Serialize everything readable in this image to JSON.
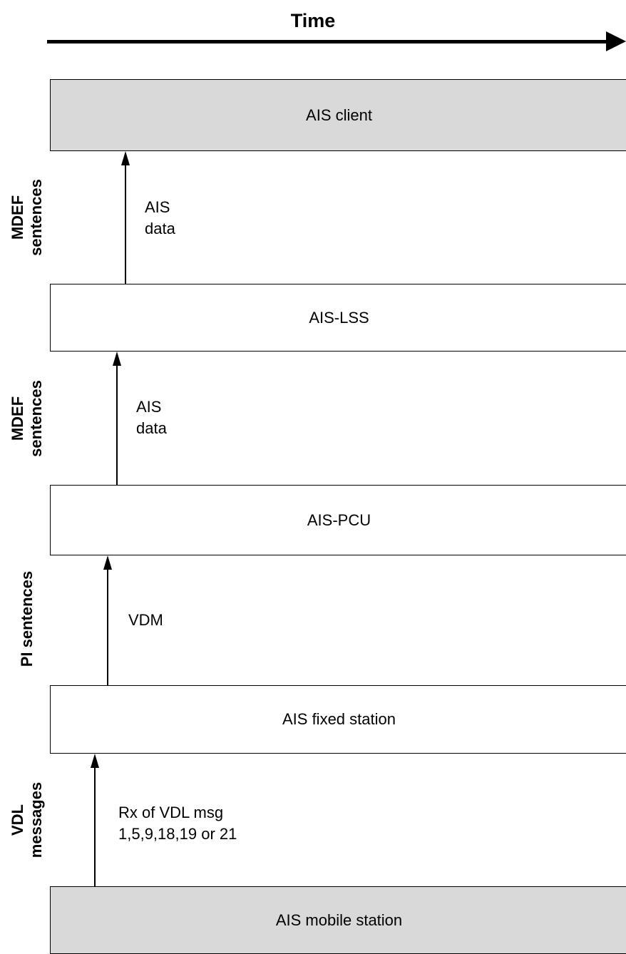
{
  "timeline": {
    "label": "Time"
  },
  "entities": {
    "ais_client": "AIS client",
    "ais_lss": "AIS-LSS",
    "ais_pcu": "AIS-PCU",
    "ais_fixed_station": "AIS fixed station",
    "ais_mobile_station": "AIS mobile station"
  },
  "messages": {
    "lss_to_client": {
      "line1": "AIS",
      "line2": "data"
    },
    "pcu_to_lss": {
      "line1": "AIS",
      "line2": "data"
    },
    "fixed_to_pcu": {
      "line1": "VDM"
    },
    "mobile_to_fixed": {
      "line1": "Rx of VDL msg",
      "line2": "1,5,9,18,19 or 21"
    }
  },
  "layers": {
    "layer1": {
      "line1": "MDEF",
      "line2": "sentences"
    },
    "layer2": {
      "line1": "MDEF",
      "line2": "sentences"
    },
    "layer3": {
      "line1": "PI sentences"
    },
    "layer4": {
      "line1": "VDL",
      "line2": "messages"
    }
  },
  "colors": {
    "grey_box": "#d9d9d9",
    "white_box": "#ffffff",
    "lines": "#000000"
  }
}
